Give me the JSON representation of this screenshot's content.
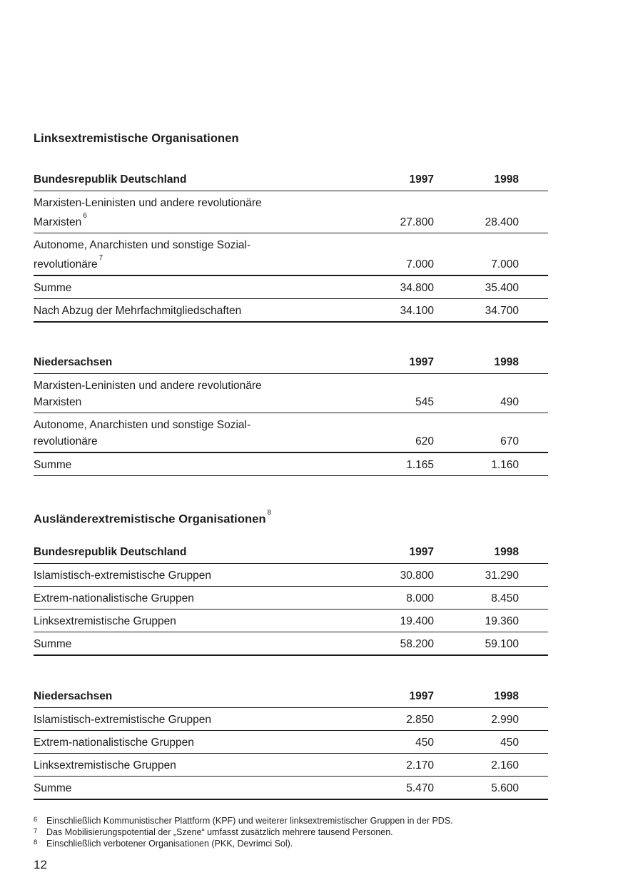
{
  "headings": {
    "left_extremist": "Linksextremistische Organisationen",
    "foreign_extremist": "Ausländerextremistische Organisationen",
    "foreign_extremist_footnote_marker": "8"
  },
  "tables": [
    {
      "region": "Bundesrepublik Deutschland",
      "col_1997": "1997",
      "col_1998": "1998",
      "rows": [
        {
          "line1": "Marxisten-Leninisten und andere revolutionäre",
          "line2": "Marxisten",
          "footnote_marker": "6",
          "v1997": "27.800",
          "v1998": "28.400"
        },
        {
          "line1": "Autonome, Anarchisten und sonstige Sozial-",
          "line2": "revolutionäre",
          "footnote_marker": "7",
          "v1997": "7.000",
          "v1998": "7.000"
        },
        {
          "line1": "Summe",
          "v1997": "34.800",
          "v1998": "35.400"
        },
        {
          "line1": "Nach Abzug der Mehrfachmitgliedschaften",
          "v1997": "34.100",
          "v1998": "34.700"
        }
      ]
    },
    {
      "region": "Niedersachsen",
      "col_1997": "1997",
      "col_1998": "1998",
      "rows": [
        {
          "line1": "Marxisten-Leninisten und andere revolutionäre",
          "line2": "Marxisten",
          "v1997": "545",
          "v1998": "490"
        },
        {
          "line1": "Autonome, Anarchisten und sonstige Sozial-",
          "line2": "revolutionäre",
          "v1997": "620",
          "v1998": "670"
        },
        {
          "line1": "Summe",
          "v1997": "1.165",
          "v1998": "1.160"
        }
      ]
    },
    {
      "region": "Bundesrepublik Deutschland",
      "col_1997": "1997",
      "col_1998": "1998",
      "rows": [
        {
          "line1": "Islamistisch-extremistische Gruppen",
          "v1997": "30.800",
          "v1998": "31.290"
        },
        {
          "line1": "Extrem-nationalistische Gruppen",
          "v1997": "8.000",
          "v1998": "8.450"
        },
        {
          "line1": "Linksextremistische Gruppen",
          "v1997": "19.400",
          "v1998": "19.360"
        },
        {
          "line1": "Summe",
          "v1997": "58.200",
          "v1998": "59.100"
        }
      ]
    },
    {
      "region": "Niedersachsen",
      "col_1997": "1997",
      "col_1998": "1998",
      "rows": [
        {
          "line1": "Islamistisch-extremistische Gruppen",
          "v1997": "2.850",
          "v1998": "2.990"
        },
        {
          "line1": "Extrem-nationalistische Gruppen",
          "v1997": "450",
          "v1998": "450"
        },
        {
          "line1": "Linksextremistische Gruppen",
          "v1997": "2.170",
          "v1998": "2.160"
        },
        {
          "line1": "Summe",
          "v1997": "5.470",
          "v1998": "5.600"
        }
      ]
    }
  ],
  "footnotes": [
    {
      "marker": "6",
      "text": "Einschließlich Kommunistischer Plattform (KPF) und weiterer linksextremistischer Gruppen in der PDS."
    },
    {
      "marker": "7",
      "text": "Das Mobilisierungspotential der „Szene“ umfasst zusätzlich mehrere tausend Personen."
    },
    {
      "marker": "8",
      "text": "Einschließlich verbotener Organisationen (PKK, Devrimci Sol)."
    }
  ],
  "page_number": "12"
}
